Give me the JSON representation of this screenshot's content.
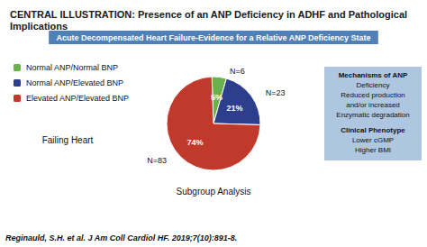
{
  "chart_data": {
    "type": "pie",
    "title": "CENTRAL ILLUSTRATION: Presence of an ANP Deficiency in ADHF and Pathological Implications",
    "subtitle": "Acute Decompensated Heart Failure-Evidence for a Relative ANP Deficiency State",
    "categories": [
      "Normal ANP/Normal BNP",
      "Normal ANP/Elevated BNP",
      "Elevated ANP/Elevated BNP"
    ],
    "values": [
      5,
      21,
      74
    ],
    "value_labels": [
      "5%",
      "21%",
      "74%"
    ],
    "n_labels": [
      "N=6",
      "N=23",
      "N=83"
    ],
    "colors": [
      "#6ab04c",
      "#2c3e8c",
      "#c0392b"
    ],
    "data_labels": true,
    "legend": "left",
    "annotations": [
      "Failing Heart",
      "Subgroup Analysis"
    ],
    "notes": [
      [
        "Mechanisms of ANP",
        "Deficiency",
        "Reduced production",
        "and/or increased",
        "Enzymatic degradation"
      ],
      [
        "Clinical Phenotype",
        "Lower cGMP",
        "Higher BMI"
      ]
    ],
    "citation": "Reginauld, S.H. et al. J Am Coll Cardiol HF. 2019;7(10):891-8."
  }
}
